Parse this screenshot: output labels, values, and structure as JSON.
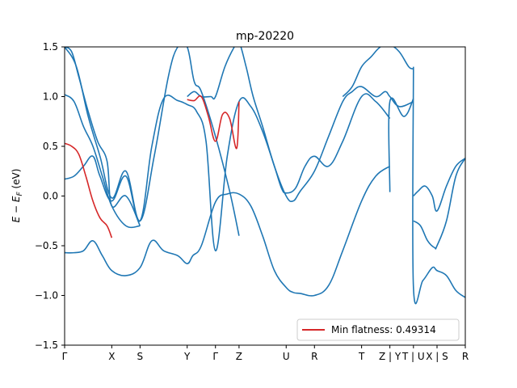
{
  "chart_data": {
    "type": "line",
    "title": "mp-20220",
    "ylabel": "E − E_F (eV)",
    "ylabel_parts": {
      "E": "E",
      "minus": " − ",
      "E2": "E",
      "sub": "F",
      "unit": " (eV)"
    },
    "xlabel": "",
    "ylim": [
      -1.5,
      1.5
    ],
    "xlim": [
      0,
      8.5
    ],
    "y_ticks": [
      -1.5,
      -1.0,
      -0.5,
      0.0,
      0.5,
      1.0,
      1.5
    ],
    "y_tick_labels": [
      "−1.5",
      "−1.0",
      "−0.5",
      "0.0",
      "0.5",
      "1.0",
      "1.5"
    ],
    "x_ticks": [
      {
        "x": 0.0,
        "label": "Γ"
      },
      {
        "x": 1.0,
        "label": "X"
      },
      {
        "x": 1.6,
        "label": "S"
      },
      {
        "x": 2.6,
        "label": "Y"
      },
      {
        "x": 3.2,
        "label": "Γ"
      },
      {
        "x": 3.7,
        "label": "Z"
      },
      {
        "x": 4.7,
        "label": "U"
      },
      {
        "x": 5.3,
        "label": "R"
      },
      {
        "x": 6.3,
        "label": "T"
      },
      {
        "x": 6.9,
        "label": "Z | Y"
      },
      {
        "x": 7.4,
        "label": "T | U"
      },
      {
        "x": 7.9,
        "label": "X | S"
      },
      {
        "x": 8.5,
        "label": "R"
      }
    ],
    "legend": {
      "position": "lower-right",
      "label": "Min flatness: 0.49314"
    },
    "colors": {
      "bands": "#1f77b4",
      "flat_band": "#d62728"
    },
    "series": [
      {
        "x": [
          0.0,
          0.2,
          0.4,
          0.6,
          0.8,
          1.0,
          1.3,
          1.6,
          1.85,
          2.1,
          2.4,
          2.6,
          2.72,
          2.9,
          3.2,
          3.45,
          3.7,
          3.95,
          4.2,
          4.45,
          4.7,
          4.85,
          5.0,
          5.3,
          5.6,
          5.9,
          6.3,
          6.6,
          6.9
        ],
        "y": [
          -0.57,
          -0.57,
          -0.55,
          -0.45,
          -0.6,
          -0.75,
          -0.8,
          -0.72,
          -0.45,
          -0.55,
          -0.6,
          -0.68,
          -0.6,
          -0.5,
          -0.06,
          0.02,
          0.02,
          -0.1,
          -0.4,
          -0.75,
          -0.92,
          -0.97,
          -0.98,
          -1.0,
          -0.9,
          -0.55,
          -0.05,
          0.2,
          0.3
        ]
      },
      {
        "x": [
          0.0,
          0.2,
          0.4,
          0.6,
          0.75,
          1.0,
          1.3,
          1.6,
          1.85,
          2.1,
          2.4,
          2.6,
          2.8,
          3.0,
          3.2,
          3.45,
          3.7,
          3.95,
          4.2,
          4.45,
          4.6,
          4.7,
          4.9,
          5.1,
          5.3,
          5.6,
          5.9,
          6.3,
          6.6,
          6.9
        ],
        "y": [
          0.17,
          0.2,
          0.3,
          0.4,
          0.2,
          -0.05,
          0.2,
          -0.25,
          0.5,
          0.98,
          0.96,
          0.92,
          0.85,
          0.55,
          -0.55,
          0.4,
          0.95,
          0.9,
          0.65,
          0.3,
          0.08,
          0.03,
          0.08,
          0.3,
          0.4,
          0.3,
          0.55,
          1.0,
          0.95,
          0.78
        ]
      },
      {
        "x": [
          0.0,
          0.15,
          0.3,
          0.5,
          0.7,
          0.9,
          1.0,
          1.3,
          1.6
        ],
        "y": [
          1.5,
          1.45,
          1.2,
          0.85,
          0.55,
          0.35,
          -0.1,
          0.0,
          -0.3
        ]
      },
      {
        "x": [
          0.0,
          0.2,
          0.4,
          0.6,
          0.8,
          1.0,
          1.3,
          1.6
        ],
        "y": [
          1.02,
          0.95,
          0.7,
          0.5,
          0.2,
          -0.1,
          -0.3,
          -0.3
        ]
      },
      {
        "x": [
          0.0,
          0.25,
          0.5,
          0.75,
          1.0,
          1.3,
          1.6,
          1.9,
          2.2,
          2.4,
          2.6,
          2.75,
          2.9,
          3.2,
          3.5,
          3.7
        ],
        "y": [
          1.5,
          1.3,
          0.8,
          0.4,
          -0.02,
          0.25,
          -0.25,
          0.4,
          1.2,
          1.5,
          1.5,
          1.15,
          1.05,
          0.6,
          0.05,
          -0.4
        ]
      },
      {
        "x": [
          2.6,
          2.75,
          2.9,
          3.1,
          3.2,
          3.4,
          3.6,
          3.7,
          3.85,
          4.0,
          4.2,
          4.45,
          4.7,
          4.85,
          5.0,
          5.3,
          5.6,
          5.9,
          6.1,
          6.3,
          6.6,
          6.8,
          6.9,
          7.1,
          7.4
        ],
        "y": [
          1.0,
          1.05,
          1.0,
          1.0,
          1.0,
          1.3,
          1.5,
          1.55,
          1.3,
          1.0,
          0.7,
          0.3,
          0.0,
          -0.05,
          0.05,
          0.25,
          0.6,
          0.95,
          1.05,
          1.1,
          1.0,
          1.05,
          1.0,
          0.9,
          0.95
        ]
      },
      {
        "x": [
          5.9,
          6.1,
          6.3,
          6.5,
          6.7,
          6.9,
          7.1,
          7.3,
          7.4
        ],
        "y": [
          1.0,
          1.1,
          1.3,
          1.4,
          1.5,
          1.52,
          1.45,
          1.3,
          1.28
        ]
      },
      {
        "x": [
          6.9,
          6.9,
          7.2,
          7.4
        ],
        "y": [
          0.04,
          0.95,
          0.8,
          0.98
        ]
      },
      {
        "x": [
          7.4,
          7.4,
          7.6,
          7.8,
          7.9,
          8.1,
          8.3,
          8.5
        ],
        "y": [
          1.3,
          -0.92,
          -0.85,
          -0.72,
          -0.75,
          -0.8,
          -0.95,
          -1.02
        ]
      },
      {
        "x": [
          7.4,
          7.5,
          7.65,
          7.8,
          7.9,
          8.1,
          8.3,
          8.5
        ],
        "y": [
          0.0,
          0.05,
          0.1,
          0.0,
          -0.15,
          0.1,
          0.3,
          0.38
        ]
      },
      {
        "x": [
          7.4,
          7.55,
          7.7,
          7.85,
          7.9,
          8.1,
          8.3,
          8.5
        ],
        "y": [
          -0.25,
          -0.3,
          -0.45,
          -0.52,
          -0.5,
          -0.25,
          0.2,
          0.38
        ]
      },
      {
        "name": "Min flatness: 0.49314",
        "flat": true,
        "x": [
          0.0,
          0.15,
          0.3,
          0.45,
          0.6,
          0.75,
          0.9,
          1.0
        ],
        "y": [
          0.53,
          0.5,
          0.42,
          0.2,
          -0.05,
          -0.22,
          -0.3,
          -0.42
        ]
      },
      {
        "flat": true,
        "x": [
          2.6,
          2.75,
          2.9,
          3.05,
          3.2,
          3.35,
          3.5,
          3.65,
          3.7
        ],
        "y": [
          0.97,
          0.96,
          1.0,
          0.8,
          0.55,
          0.82,
          0.78,
          0.48,
          0.95
        ]
      }
    ]
  }
}
